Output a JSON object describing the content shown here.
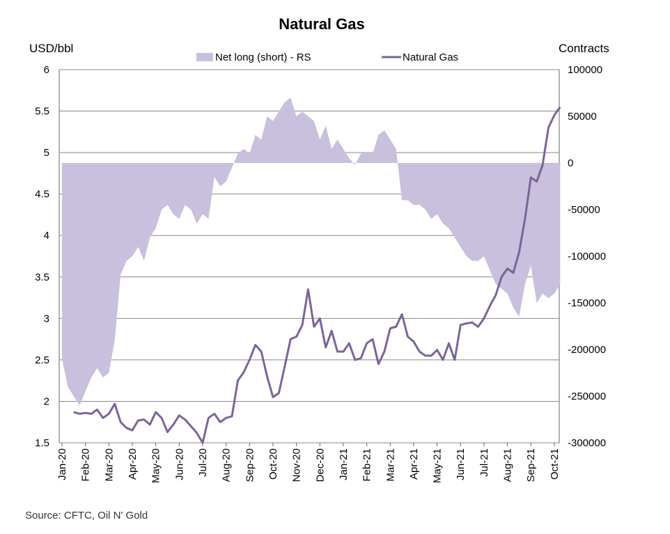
{
  "chart_data": {
    "type": "line",
    "title": "Natural Gas",
    "ylabel_left": "USD/bbl",
    "ylabel_right": "Contracts",
    "ylim_left": [
      1.5,
      6
    ],
    "ylim_right": [
      -300000,
      100000
    ],
    "yticks_left": [
      "6",
      "5.5",
      "5",
      "4.5",
      "4",
      "3.5",
      "3",
      "2.5",
      "2",
      "1.5"
    ],
    "yticks_right": [
      "100000",
      "50000",
      "0",
      "-50000",
      "-100000",
      "-150000",
      "-200000",
      "-250000",
      "-300000"
    ],
    "x_categories": [
      "Jan-20",
      "Feb-20",
      "Mar-20",
      "Apr-20",
      "May-20",
      "Jun-20",
      "Jul-20",
      "Aug-20",
      "Sep-20",
      "Oct-20",
      "Nov-20",
      "Dec-20",
      "Jan-21",
      "Feb-21",
      "Mar-21",
      "Apr-21",
      "May-21",
      "Jun-21",
      "Jul-21",
      "Aug-21",
      "Sep-21",
      "Oct-21"
    ],
    "grid": true,
    "legend_position": "top-center",
    "colors": {
      "area": "#c8c0dc",
      "line": "#7b6499",
      "grid": "#888888"
    },
    "series": [
      {
        "name": "Net long (short) - RS",
        "kind": "area",
        "axis": "right",
        "x": [
          0.0,
          0.25,
          0.5,
          0.75,
          1.0,
          1.25,
          1.5,
          1.75,
          2.0,
          2.25,
          2.5,
          2.75,
          3.0,
          3.25,
          3.5,
          3.75,
          4.0,
          4.25,
          4.5,
          4.75,
          5.0,
          5.25,
          5.5,
          5.75,
          6.0,
          6.25,
          6.5,
          6.75,
          7.0,
          7.25,
          7.5,
          7.75,
          8.0,
          8.25,
          8.5,
          8.75,
          9.0,
          9.25,
          9.5,
          9.75,
          10.0,
          10.25,
          10.5,
          10.75,
          11.0,
          11.25,
          11.5,
          11.75,
          12.0,
          12.25,
          12.5,
          12.75,
          13.0,
          13.25,
          13.5,
          13.75,
          14.0,
          14.25,
          14.5,
          14.75,
          15.0,
          15.25,
          15.5,
          15.75,
          16.0,
          16.25,
          16.5,
          16.75,
          17.0,
          17.25,
          17.5,
          17.75,
          18.0,
          18.25,
          18.5,
          18.75,
          19.0,
          19.25,
          19.5,
          19.75,
          20.0,
          20.25,
          20.5,
          20.75,
          21.0,
          21.25
        ],
        "values": [
          -210000,
          -240000,
          -250000,
          -260000,
          -245000,
          -230000,
          -220000,
          -230000,
          -225000,
          -190000,
          -120000,
          -105000,
          -100000,
          -90000,
          -105000,
          -80000,
          -70000,
          -50000,
          -45000,
          -55000,
          -60000,
          -45000,
          -50000,
          -65000,
          -55000,
          -60000,
          -15000,
          -25000,
          -20000,
          -5000,
          10000,
          15000,
          10000,
          30000,
          25000,
          50000,
          45000,
          55000,
          65000,
          70000,
          50000,
          55000,
          50000,
          45000,
          25000,
          40000,
          15000,
          25000,
          15000,
          5000,
          -2000,
          10000,
          12000,
          10000,
          30000,
          35000,
          25000,
          15000,
          -40000,
          -40000,
          -45000,
          -45000,
          -50000,
          -60000,
          -55000,
          -65000,
          -70000,
          -80000,
          -90000,
          -100000,
          -105000,
          -105000,
          -100000,
          -115000,
          -130000,
          -135000,
          -140000,
          -155000,
          -165000,
          -130000,
          -110000,
          -150000,
          -140000,
          -145000,
          -140000,
          -130000
        ]
      },
      {
        "name": "Natural Gas",
        "kind": "line",
        "axis": "left",
        "x": [
          0.5,
          0.75,
          1.0,
          1.25,
          1.5,
          1.75,
          2.0,
          2.25,
          2.5,
          2.75,
          3.0,
          3.25,
          3.5,
          3.75,
          4.0,
          4.25,
          4.5,
          4.75,
          5.0,
          5.25,
          5.5,
          5.75,
          6.0,
          6.25,
          6.5,
          6.75,
          7.0,
          7.25,
          7.5,
          7.75,
          8.0,
          8.25,
          8.5,
          8.75,
          9.0,
          9.25,
          9.5,
          9.75,
          10.0,
          10.25,
          10.5,
          10.75,
          11.0,
          11.25,
          11.5,
          11.75,
          12.0,
          12.25,
          12.5,
          12.75,
          13.0,
          13.25,
          13.5,
          13.75,
          14.0,
          14.25,
          14.5,
          14.75,
          15.0,
          15.25,
          15.5,
          15.75,
          16.0,
          16.25,
          16.5,
          16.75,
          17.0,
          17.25,
          17.5,
          17.75,
          18.0,
          18.25,
          18.5,
          18.75,
          19.0,
          19.25,
          19.5,
          19.75,
          20.0,
          20.25,
          20.5,
          20.75,
          21.0,
          21.25
        ],
        "values": [
          1.87,
          1.85,
          1.86,
          1.85,
          1.9,
          1.8,
          1.85,
          1.97,
          1.75,
          1.68,
          1.65,
          1.77,
          1.78,
          1.72,
          1.87,
          1.8,
          1.63,
          1.72,
          1.83,
          1.78,
          1.7,
          1.62,
          1.5,
          1.8,
          1.85,
          1.75,
          1.8,
          1.82,
          2.25,
          2.35,
          2.5,
          2.68,
          2.6,
          2.3,
          2.05,
          2.1,
          2.42,
          2.75,
          2.78,
          2.92,
          3.35,
          2.9,
          3.0,
          2.65,
          2.85,
          2.6,
          2.6,
          2.7,
          2.5,
          2.52,
          2.7,
          2.75,
          2.45,
          2.6,
          2.88,
          2.9,
          3.05,
          2.78,
          2.72,
          2.6,
          2.55,
          2.55,
          2.62,
          2.5,
          2.7,
          2.5,
          2.92,
          2.94,
          2.95,
          2.9,
          3.0,
          3.15,
          3.28,
          3.5,
          3.6,
          3.55,
          3.8,
          4.2,
          4.7,
          4.65,
          4.85,
          5.3,
          5.45,
          5.55
        ]
      }
    ]
  },
  "source_text": "Source: CFTC, Oil N' Gold"
}
